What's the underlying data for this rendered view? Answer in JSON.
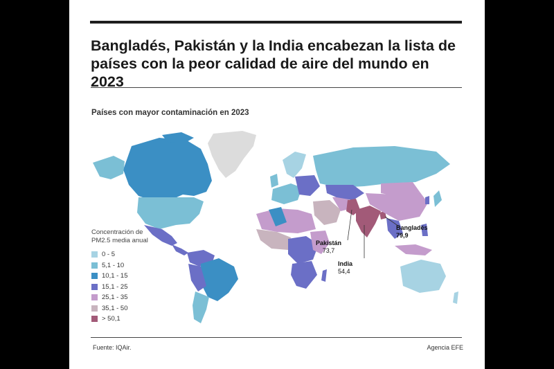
{
  "headline": {
    "line1": "Bangladés, Pakistán y la India encabezan la lista de",
    "line2": "países con la peor calidad de aire del mundo en 2023"
  },
  "subtitle": "Países con mayor contaminación en 2023",
  "legend": {
    "title_line1": "Concentración de",
    "title_line2": "PM2.5 media anual",
    "items": [
      {
        "label": "0 - 5",
        "color": "#a7d3e3"
      },
      {
        "label": "5,1 - 10",
        "color": "#7bbfd5"
      },
      {
        "label": "10,1 - 15",
        "color": "#3b8fc4"
      },
      {
        "label": "15,1 - 25",
        "color": "#6b6fc6"
      },
      {
        "label": "25,1 - 35",
        "color": "#c49ccc"
      },
      {
        "label": "35,1 - 50",
        "color": "#c8b4be"
      },
      {
        "label": "> 50,1",
        "color": "#a25a78"
      }
    ]
  },
  "no_data_color": "#dcdcdc",
  "annotations": {
    "bangladesh": {
      "name": "Bangladés",
      "value": "79,9"
    },
    "pakistan": {
      "name": "Pakistán",
      "value": "73,7"
    },
    "india": {
      "name": "India",
      "value": "54,4"
    }
  },
  "footer": {
    "source": "Fuente: IQAir.",
    "agency": "Agencia EFE"
  }
}
